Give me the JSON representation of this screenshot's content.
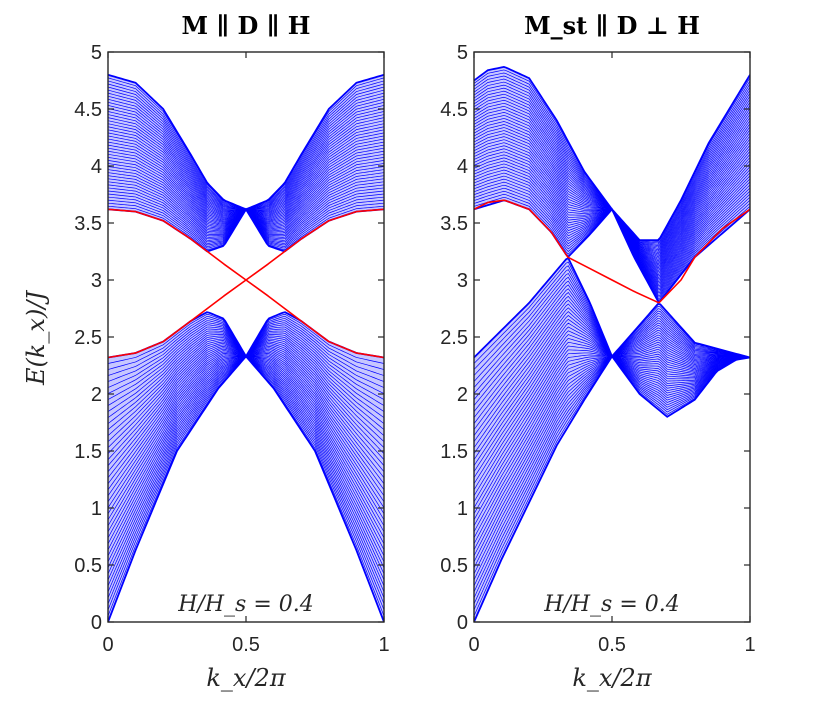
{
  "chart_data": [
    {
      "type": "line",
      "title": "M ∥ D ∥ H",
      "xlabel": "k_x/2π",
      "ylabel": "E(k_x)/J",
      "xlim": [
        0,
        1
      ],
      "ylim": [
        0,
        5
      ],
      "xticks": [
        "0",
        "0.5",
        "1"
      ],
      "yticks": [
        "0",
        "0.5",
        "1",
        "1.5",
        "2",
        "2.5",
        "3",
        "3.5",
        "4",
        "4.5",
        "5"
      ],
      "annotation": "H/H_s = 0.4",
      "grid": false,
      "bands": [
        {
          "color": "#0000ff",
          "upper_edge": {
            "x": [
              0,
              0.1,
              0.2,
              0.3,
              0.36,
              0.42,
              0.5,
              0.58,
              0.64,
              0.7,
              0.8,
              0.9,
              1
            ],
            "y": [
              4.8,
              4.73,
              4.5,
              4.1,
              3.85,
              3.7,
              3.62,
              3.7,
              3.85,
              4.1,
              4.5,
              4.73,
              4.8
            ]
          },
          "lower_edge": {
            "x": [
              0,
              0.1,
              0.2,
              0.3,
              0.36,
              0.42,
              0.5,
              0.58,
              0.64,
              0.7,
              0.8,
              0.9,
              1
            ],
            "y": [
              3.62,
              3.6,
              3.52,
              3.36,
              3.25,
              3.3,
              3.62,
              3.3,
              3.25,
              3.36,
              3.52,
              3.6,
              3.62
            ]
          }
        },
        {
          "color": "#0000ff",
          "upper_edge": {
            "x": [
              0,
              0.1,
              0.2,
              0.3,
              0.36,
              0.42,
              0.5,
              0.58,
              0.64,
              0.7,
              0.8,
              0.9,
              1
            ],
            "y": [
              2.32,
              2.36,
              2.46,
              2.64,
              2.72,
              2.66,
              2.33,
              2.66,
              2.72,
              2.64,
              2.46,
              2.36,
              2.32
            ]
          },
          "lower_edge": {
            "x": [
              0,
              0.1,
              0.25,
              0.4,
              0.5,
              0.6,
              0.75,
              0.9,
              1
            ],
            "y": [
              0,
              0.63,
              1.5,
              2.05,
              2.33,
              2.05,
              1.5,
              0.63,
              0
            ]
          }
        }
      ],
      "series": [
        {
          "color": "#ff0000",
          "x": [
            0,
            0.1,
            0.2,
            0.3,
            0.36,
            0.42,
            0.5,
            0.58,
            0.64,
            0.7,
            0.8,
            0.9,
            1
          ],
          "y": [
            3.62,
            3.6,
            3.52,
            3.36,
            3.25,
            3.14,
            3.0,
            2.86,
            2.75,
            2.64,
            2.46,
            2.36,
            2.32
          ]
        },
        {
          "color": "#ff0000",
          "x": [
            0,
            0.1,
            0.2,
            0.3,
            0.36,
            0.42,
            0.5,
            0.58,
            0.64,
            0.7,
            0.8,
            0.9,
            1
          ],
          "y": [
            2.32,
            2.36,
            2.46,
            2.64,
            2.75,
            2.86,
            3.0,
            3.14,
            3.25,
            3.36,
            3.52,
            3.6,
            3.62
          ]
        }
      ]
    },
    {
      "type": "line",
      "title": "M_st ∥ D ⊥ H",
      "xlabel": "k_x/2π",
      "ylabel": "",
      "xlim": [
        0,
        1
      ],
      "ylim": [
        0,
        5
      ],
      "xticks": [
        "0",
        "0.5",
        "1"
      ],
      "yticks": [
        "0",
        "0.5",
        "1",
        "1.5",
        "2",
        "2.5",
        "3",
        "3.5",
        "4",
        "4.5",
        "5"
      ],
      "annotation": "H/H_s = 0.4",
      "grid": false,
      "bands": [
        {
          "color": "#0000ff",
          "upper_edge": {
            "x": [
              0,
              0.05,
              0.11,
              0.2,
              0.3,
              0.4,
              0.5,
              0.6,
              0.67,
              0.75,
              0.85,
              1
            ],
            "y": [
              4.75,
              4.84,
              4.87,
              4.77,
              4.4,
              3.95,
              3.62,
              3.35,
              3.35,
              3.7,
              4.2,
              4.8
            ]
          },
          "lower_edge": {
            "x": [
              0,
              0.11,
              0.2,
              0.28,
              0.34,
              0.42,
              0.5,
              0.58,
              0.67,
              0.8,
              1
            ],
            "y": [
              3.62,
              3.7,
              3.62,
              3.42,
              3.2,
              3.4,
              3.62,
              3.2,
              2.8,
              3.2,
              3.62
            ]
          }
        },
        {
          "color": "#0000ff",
          "upper_edge": {
            "x": [
              0,
              0.2,
              0.34,
              0.42,
              0.5,
              0.58,
              0.67,
              0.8,
              1
            ],
            "y": [
              2.32,
              2.8,
              3.2,
              2.8,
              2.33,
              2.55,
              2.8,
              2.45,
              2.32
            ]
          },
          "lower_edge": {
            "x": [
              0,
              0.1,
              0.2,
              0.3,
              0.4,
              0.5,
              0.6,
              0.7,
              0.8,
              0.88,
              0.95,
              1
            ],
            "y": [
              0,
              0.55,
              1.05,
              1.55,
              1.95,
              2.33,
              2.0,
              1.8,
              1.95,
              2.2,
              2.3,
              2.32
            ]
          }
        }
      ],
      "series": [
        {
          "color": "#ff0000",
          "x": [
            0,
            0.05,
            0.11,
            0.2,
            0.28,
            0.34,
            0.42,
            0.5,
            0.58,
            0.67
          ],
          "y": [
            3.62,
            3.68,
            3.7,
            3.62,
            3.42,
            3.2,
            3.1,
            3.0,
            2.9,
            2.8
          ]
        },
        {
          "color": "#ff0000",
          "x": [
            0.67,
            0.75,
            0.8,
            0.9,
            1
          ],
          "y": [
            2.8,
            3.0,
            3.2,
            3.45,
            3.62
          ]
        }
      ]
    }
  ]
}
